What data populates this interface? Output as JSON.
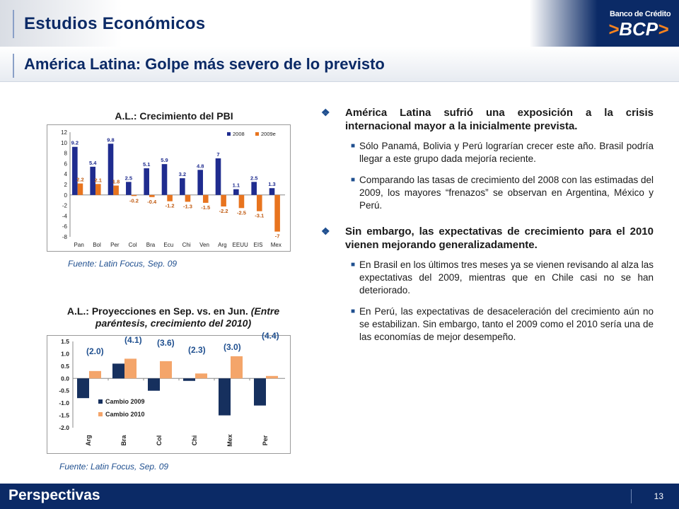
{
  "header": {
    "section_title": "Estudios Económicos",
    "slide_title": "América Latina: Golpe más severo de lo previsto",
    "logo_top": "Banco de Crédito",
    "logo_main": "BCP",
    "logo_arrows": ">"
  },
  "colors": {
    "navy": "#0b2a66",
    "bar_2008": "#1f2c8f",
    "bar_2009e": "#e8741e",
    "cambio2009": "#16305e",
    "cambio2010": "#f4a56a",
    "accent_red": "#c00000"
  },
  "chart1": {
    "title": "A.L.: Crecimiento del PBI",
    "source": "Fuente: Latin Focus, Sep. 09"
  },
  "chart2": {
    "title_main": "A.L.: Proyecciones en Sep. vs. en Jun.",
    "title_italic": "(Entre paréntesis, crecimiento del 2010)",
    "source": "Fuente: Latin Focus, Sep. 09"
  },
  "chart_data": [
    {
      "type": "bar",
      "title": "A.L.: Crecimiento del PBI",
      "categories": [
        "Pan",
        "Bol",
        "Per",
        "Col",
        "Bra",
        "Ecu",
        "Chi",
        "Ven",
        "Arg",
        "EEUU",
        "EIS",
        "Mex"
      ],
      "series": [
        {
          "name": "2008",
          "values": [
            9.2,
            5.4,
            9.8,
            2.5,
            5.1,
            5.9,
            3.2,
            4.8,
            7,
            1.1,
            2.5,
            1.3
          ],
          "labels": [
            "9.2",
            "5.4",
            "9.8",
            "2.5",
            "5.1",
            "5.9",
            "3.2",
            "4.8",
            "7",
            "1.1",
            "2.5",
            "1.3"
          ]
        },
        {
          "name": "2009e",
          "values": [
            2.2,
            2.1,
            1.8,
            -0.2,
            -0.4,
            -1.2,
            -1.3,
            -1.5,
            -2.2,
            -2.5,
            -3.1,
            -7
          ],
          "labels": [
            "2.2",
            "2.1",
            "1.8",
            "-0.2",
            "-0.4",
            "-1.2",
            "-1.3",
            "-1.5",
            "-2.2",
            "-2.5",
            "-3.1",
            "-7"
          ]
        }
      ],
      "ylim": [
        -8,
        12
      ],
      "yticks": [
        -8,
        -6,
        -4,
        -2,
        0,
        2,
        4,
        6,
        8,
        10,
        12
      ],
      "legend": "top-right"
    },
    {
      "type": "bar",
      "title": "A.L.: Proyecciones en Sep. vs. en Jun. (Entre paréntesis, crecimiento del 2010)",
      "categories": [
        "Arg",
        "Bra",
        "Col",
        "Chi",
        "Mex",
        "Per"
      ],
      "series": [
        {
          "name": "Cambio 2009",
          "values": [
            -0.8,
            0.6,
            -0.5,
            -0.1,
            -1.5,
            -1.1
          ]
        },
        {
          "name": "Cambio 2010",
          "values": [
            0.3,
            0.8,
            0.7,
            0.2,
            0.9,
            0.1
          ]
        }
      ],
      "annotations": [
        "(2.0)",
        "(4.1)",
        "(3.6)",
        "(2.3)",
        "(3.0)",
        "(4.4)"
      ],
      "ylim": [
        -2.0,
        1.5
      ],
      "yticks": [
        "-2.0",
        "-1.5",
        "-1.0",
        "-0.5",
        "0.0",
        "0.5",
        "1.0",
        "1.5"
      ],
      "legend": "bottom-left"
    }
  ],
  "content": {
    "b1": "América Latina sufrió una exposición a la crisis internacional mayor a la inicialmente prevista.",
    "b1_s1": "Sólo Panamá, Bolivia y Perú lograrían crecer este año. Brasil podría llegar a este grupo dada mejoría reciente.",
    "b1_s2": "Comparando las tasas de crecimiento del 2008 con las estimadas del 2009, los mayores “frenazos” se observan en Argentina, México y Perú.",
    "b2": "Sin embargo, las expectativas de crecimiento para el 2010 vienen mejorando generalizadamente.",
    "b2_s1": "En Brasil en los últimos tres meses ya se vienen revisando al alza las expectativas del 2009, mientras que en Chile casi no se han deteriorado.",
    "b2_s2": "En Perú, las expectativas de desaceleración del crecimiento aún no se estabilizan. Sin embargo, tanto el 2009 como el 2010 sería una de las economías de mejor desempeño.",
    "marker_main": "❖",
    "marker_sub": "■"
  },
  "footer": {
    "label": "Perspectivas",
    "page": "13"
  }
}
